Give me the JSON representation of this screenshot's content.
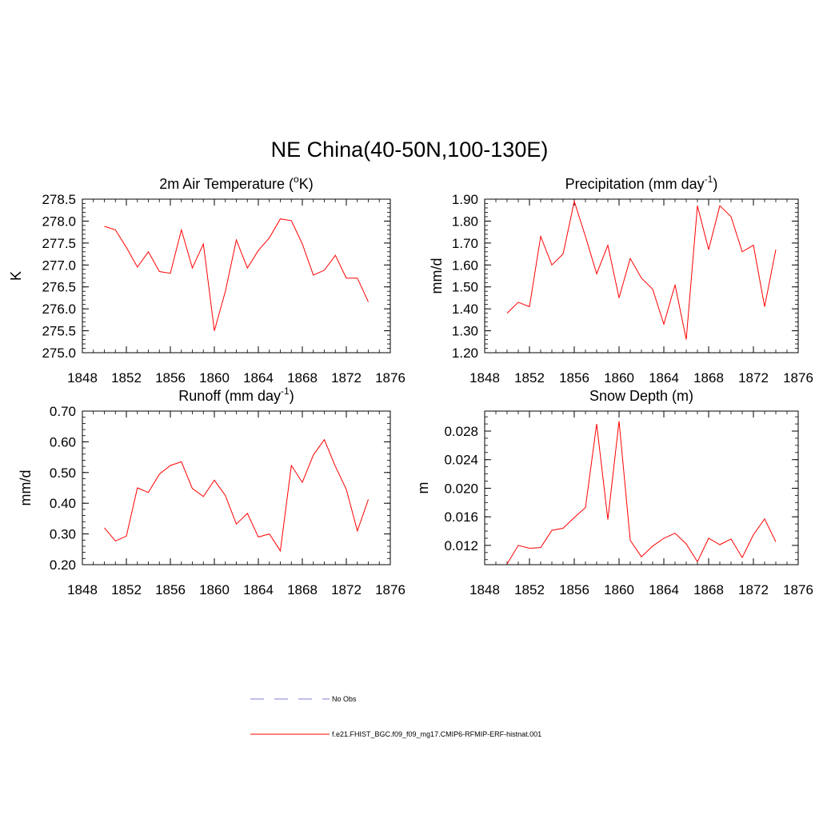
{
  "figure": {
    "title": "NE China(40-50N,100-130E)"
  },
  "legend": [
    {
      "label": "No Obs",
      "color": "#9999dd",
      "style": "dashed"
    },
    {
      "label": "f.e21.FHIST_BGC.f09_f09_mg17.CMIP6-RFMIP-ERF-histnat.001",
      "color": "#ff0000",
      "style": "solid"
    }
  ],
  "chart_data": [
    {
      "type": "line",
      "title": "2m Air Temperature (°K)",
      "title_parts": {
        "pre": "2m Air Temperature (",
        "sup": "o",
        "post": "K)"
      },
      "ylabel": "K",
      "xlabel": "",
      "xlim": [
        1848,
        1876
      ],
      "ylim": [
        275.0,
        278.5
      ],
      "xticks": [
        1848,
        1852,
        1856,
        1860,
        1864,
        1868,
        1872,
        1876
      ],
      "xtick_labels": [
        "1848",
        "1852",
        "1856",
        "1860",
        "1864",
        "1868",
        "1872",
        "1876"
      ],
      "yticks": [
        275.0,
        275.5,
        276.0,
        276.5,
        277.0,
        277.5,
        278.0,
        278.5
      ],
      "ytick_labels": [
        "275.0",
        "275.5",
        "276.0",
        "276.5",
        "277.0",
        "277.5",
        "278.0",
        "278.5"
      ],
      "minor_x_step": 1,
      "minor_y_step": 0.1,
      "color": "#ff0000",
      "series": [
        {
          "name": "f.e21.FHIST_BGC.f09_f09_mg17.CMIP6-RFMIP-ERF-histnat.001",
          "x": [
            1850,
            1851,
            1852,
            1853,
            1854,
            1855,
            1856,
            1857,
            1858,
            1859,
            1860,
            1861,
            1862,
            1863,
            1864,
            1865,
            1866,
            1867,
            1868,
            1869,
            1870,
            1871,
            1872,
            1873,
            1874
          ],
          "values": [
            277.88,
            277.8,
            277.4,
            276.95,
            277.3,
            276.85,
            276.81,
            277.8,
            276.93,
            277.48,
            275.5,
            276.4,
            277.57,
            276.93,
            277.33,
            277.62,
            278.05,
            278.01,
            277.48,
            276.77,
            276.88,
            277.22,
            276.7,
            276.7,
            276.16
          ]
        }
      ]
    },
    {
      "type": "line",
      "title": "Precipitation (mm day-1)",
      "title_parts": {
        "pre": "Precipitation (mm day",
        "sup": "-1",
        "post": ")"
      },
      "ylabel": "mm/d",
      "xlabel": "",
      "xlim": [
        1848,
        1876
      ],
      "ylim": [
        1.2,
        1.9
      ],
      "xticks": [
        1848,
        1852,
        1856,
        1860,
        1864,
        1868,
        1872,
        1876
      ],
      "xtick_labels": [
        "1848",
        "1852",
        "1856",
        "1860",
        "1864",
        "1868",
        "1872",
        "1876"
      ],
      "yticks": [
        1.2,
        1.3,
        1.4,
        1.5,
        1.6,
        1.7,
        1.8,
        1.9
      ],
      "ytick_labels": [
        "1.20",
        "1.30",
        "1.40",
        "1.50",
        "1.60",
        "1.70",
        "1.80",
        "1.90"
      ],
      "minor_x_step": 1,
      "minor_y_step": 0.02,
      "color": "#ff0000",
      "series": [
        {
          "name": "f.e21.FHIST_BGC.f09_f09_mg17.CMIP6-RFMIP-ERF-histnat.001",
          "x": [
            1850,
            1851,
            1852,
            1853,
            1854,
            1855,
            1856,
            1857,
            1858,
            1859,
            1860,
            1861,
            1862,
            1863,
            1864,
            1865,
            1866,
            1867,
            1868,
            1869,
            1870,
            1871,
            1872,
            1873,
            1874
          ],
          "values": [
            1.38,
            1.43,
            1.41,
            1.73,
            1.6,
            1.65,
            1.89,
            1.73,
            1.56,
            1.69,
            1.45,
            1.63,
            1.54,
            1.49,
            1.33,
            1.51,
            1.26,
            1.87,
            1.67,
            1.87,
            1.82,
            1.66,
            1.69,
            1.41,
            1.67
          ]
        }
      ]
    },
    {
      "type": "line",
      "title": "Runoff (mm day-1)",
      "title_parts": {
        "pre": "Runoff (mm day",
        "sup": "-1",
        "post": ")"
      },
      "ylabel": "mm/d",
      "xlabel": "",
      "xlim": [
        1848,
        1876
      ],
      "ylim": [
        0.2,
        0.7
      ],
      "xticks": [
        1848,
        1852,
        1856,
        1860,
        1864,
        1868,
        1872,
        1876
      ],
      "xtick_labels": [
        "1848",
        "1852",
        "1856",
        "1860",
        "1864",
        "1868",
        "1872",
        "1876"
      ],
      "yticks": [
        0.2,
        0.3,
        0.4,
        0.5,
        0.6,
        0.7
      ],
      "ytick_labels": [
        "0.20",
        "0.30",
        "0.40",
        "0.50",
        "0.60",
        "0.70"
      ],
      "minor_x_step": 1,
      "minor_y_step": 0.02,
      "color": "#ff0000",
      "series": [
        {
          "name": "f.e21.FHIST_BGC.f09_f09_mg17.CMIP6-RFMIP-ERF-histnat.001",
          "x": [
            1850,
            1851,
            1852,
            1853,
            1854,
            1855,
            1856,
            1857,
            1858,
            1859,
            1860,
            1861,
            1862,
            1863,
            1864,
            1865,
            1866,
            1867,
            1868,
            1869,
            1870,
            1871,
            1872,
            1873,
            1874
          ],
          "values": [
            0.32,
            0.277,
            0.293,
            0.45,
            0.435,
            0.495,
            0.523,
            0.535,
            0.448,
            0.422,
            0.475,
            0.425,
            0.332,
            0.367,
            0.29,
            0.3,
            0.245,
            0.523,
            0.468,
            0.557,
            0.607,
            0.52,
            0.445,
            0.31,
            0.412
          ]
        }
      ]
    },
    {
      "type": "line",
      "title": "Snow Depth (m)",
      "title_parts": {
        "pre": "Snow Depth (m)",
        "sup": "",
        "post": ""
      },
      "ylabel": "m",
      "xlabel": "",
      "xlim": [
        1848,
        1876
      ],
      "ylim": [
        0.0093,
        0.0308
      ],
      "xticks": [
        1848,
        1852,
        1856,
        1860,
        1864,
        1868,
        1872,
        1876
      ],
      "xtick_labels": [
        "1848",
        "1852",
        "1856",
        "1860",
        "1864",
        "1868",
        "1872",
        "1876"
      ],
      "yticks": [
        0.012,
        0.016,
        0.02,
        0.024,
        0.028
      ],
      "ytick_labels": [
        "0.012",
        "0.016",
        "0.020",
        "0.024",
        "0.028"
      ],
      "minor_x_step": 1,
      "minor_y_step": 0.001,
      "color": "#ff0000",
      "series": [
        {
          "name": "f.e21.FHIST_BGC.f09_f09_mg17.CMIP6-RFMIP-ERF-histnat.001",
          "x": [
            1850,
            1851,
            1852,
            1853,
            1854,
            1855,
            1856,
            1857,
            1858,
            1859,
            1860,
            1861,
            1862,
            1863,
            1864,
            1865,
            1866,
            1867,
            1868,
            1869,
            1870,
            1871,
            1872,
            1873,
            1874
          ],
          "values": [
            0.0094,
            0.012,
            0.0116,
            0.0117,
            0.0141,
            0.0144,
            0.0159,
            0.0173,
            0.029,
            0.0156,
            0.0294,
            0.0127,
            0.0104,
            0.0119,
            0.013,
            0.0137,
            0.0122,
            0.0097,
            0.013,
            0.0121,
            0.0129,
            0.0103,
            0.0135,
            0.0157,
            0.0125
          ]
        }
      ]
    }
  ]
}
